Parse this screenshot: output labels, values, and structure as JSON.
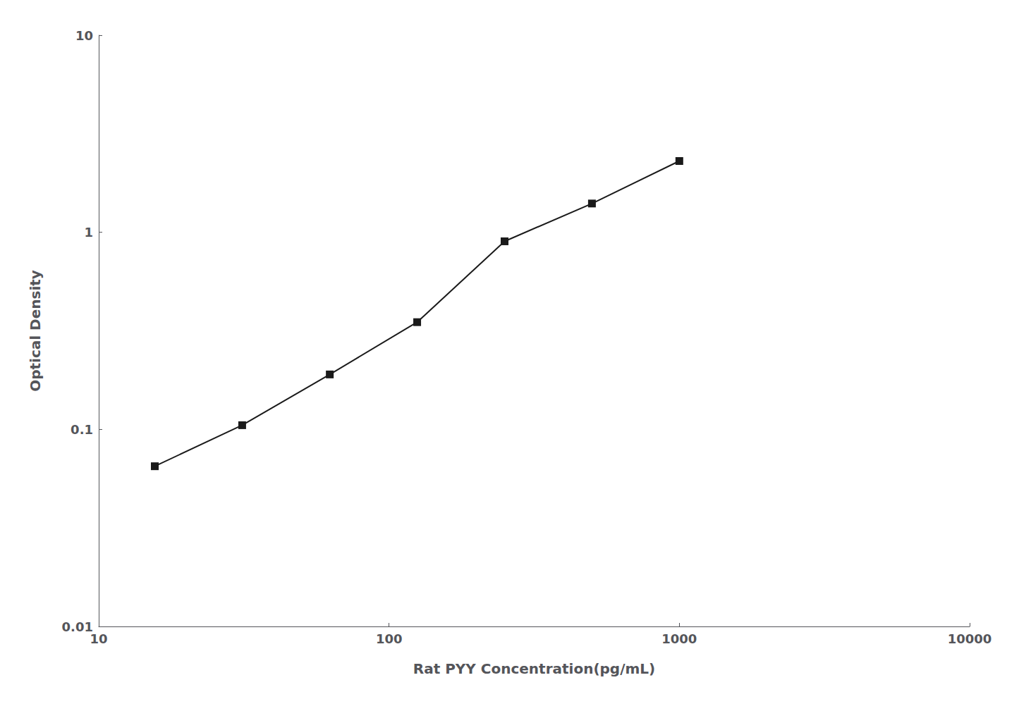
{
  "chart_data": {
    "type": "line",
    "xlabel": "Rat PYY Concentration(pg/mL)",
    "ylabel": "Optical Density",
    "x": [
      15.6,
      31.2,
      62.5,
      125,
      250,
      500,
      1000
    ],
    "values": [
      0.065,
      0.105,
      0.19,
      0.35,
      0.9,
      1.4,
      2.3
    ],
    "xlim": [
      10,
      10000
    ],
    "ylim": [
      0.01,
      10
    ],
    "xticks": [
      10,
      100,
      1000,
      10000
    ],
    "yticks": [
      0.01,
      0.1,
      1,
      10
    ],
    "log": true,
    "grid": false,
    "color": "#1a1a1a",
    "marker": "square"
  }
}
